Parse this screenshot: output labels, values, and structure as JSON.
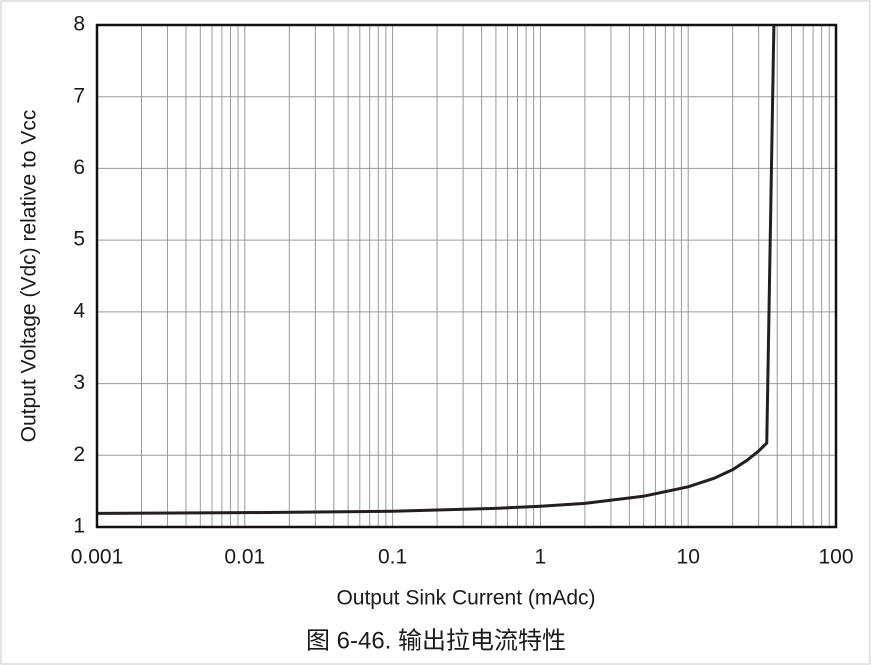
{
  "chart_data": {
    "type": "line",
    "xlabel": "Output Sink Current (mAdc)",
    "ylabel": "Output Voltage (Vdc) relative to Vcc",
    "caption": "图 6-46. 输出拉电流特性",
    "x": [
      0.001,
      0.01,
      0.1,
      0.5,
      1,
      2,
      5,
      10,
      15,
      20,
      25,
      30,
      34,
      38
    ],
    "series": [
      {
        "color": "#231f20",
        "values": [
          1.19,
          1.2,
          1.22,
          1.26,
          1.29,
          1.33,
          1.43,
          1.56,
          1.68,
          1.8,
          1.93,
          2.06,
          2.17,
          8
        ]
      }
    ],
    "xlim": [
      0.001,
      100
    ],
    "xticks": [
      0.001,
      0.01,
      0.1,
      1,
      10,
      100
    ],
    "xscale": "log",
    "ylim": [
      1,
      8
    ],
    "yticks": [
      1,
      2,
      3,
      4,
      5,
      6,
      7,
      8
    ],
    "grid": true,
    "minor_grid": true
  }
}
